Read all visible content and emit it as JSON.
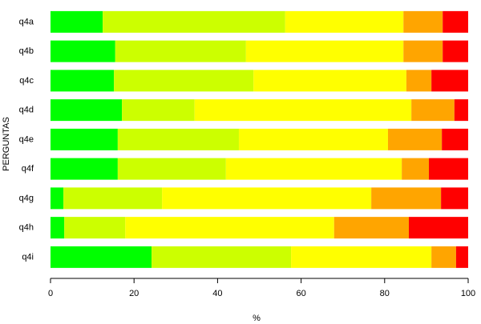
{
  "chart_data": {
    "type": "stacked-bar",
    "orientation": "horizontal",
    "x_label": "%",
    "y_label": "PERGUNTAS",
    "categories": [
      "q4a",
      "q4b",
      "q4c",
      "q4d",
      "q4e",
      "q4f",
      "q4g",
      "q4h",
      "q4i"
    ],
    "series": [
      {
        "color": "#00ff00",
        "values": [
          12.5,
          15.5,
          15.2,
          17.1,
          16.1,
          16.1,
          3.1,
          3.3,
          24.2
        ]
      },
      {
        "color": "#ccff00",
        "values": [
          43.7,
          31.3,
          33.4,
          17.4,
          29.0,
          25.9,
          23.6,
          14.6,
          33.4
        ]
      },
      {
        "color": "#ffff00",
        "values": [
          28.3,
          37.7,
          36.6,
          51.9,
          35.7,
          42.1,
          50.1,
          50.0,
          33.6
        ]
      },
      {
        "color": "#ffa500",
        "values": [
          9.4,
          9.4,
          6.0,
          10.3,
          12.9,
          6.5,
          16.7,
          17.9,
          5.9
        ]
      },
      {
        "color": "#ff0000",
        "values": [
          6.1,
          6.1,
          8.8,
          3.3,
          6.3,
          9.4,
          6.5,
          14.2,
          2.9
        ]
      }
    ],
    "xlim": [
      0,
      100
    ],
    "xticks": [
      0,
      20,
      40,
      60,
      80,
      100
    ]
  }
}
